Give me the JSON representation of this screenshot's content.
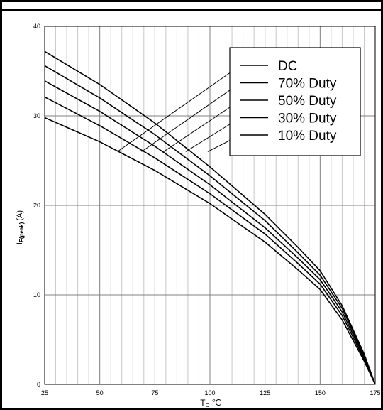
{
  "chart_data": {
    "type": "line",
    "title": "",
    "xlabel_main": "T",
    "xlabel_sub": "C",
    "xlabel_unit": "℃",
    "ylabel_main": "I",
    "ylabel_sub": "F(peak)",
    "ylabel_unit": "(A)",
    "xlim": [
      25,
      175
    ],
    "ylim": [
      0,
      40
    ],
    "xticks": [
      25,
      50,
      75,
      100,
      125,
      150,
      175
    ],
    "yticks": [
      0,
      10,
      20,
      30,
      40
    ],
    "grid": true,
    "legend_position": "top-right",
    "x": [
      25,
      50,
      75,
      100,
      125,
      140,
      150,
      160,
      170,
      175
    ],
    "series": [
      {
        "name": "DC",
        "values": [
          37.2,
          33.5,
          29.2,
          24.3,
          19.0,
          15.3,
          12.7,
          8.8,
          3.4,
          0
        ]
      },
      {
        "name": "70% Duty",
        "values": [
          35.6,
          32.0,
          27.9,
          23.3,
          18.3,
          14.7,
          12.2,
          8.5,
          3.2,
          0
        ]
      },
      {
        "name": "50% Duty",
        "values": [
          33.9,
          30.5,
          26.6,
          22.3,
          17.5,
          14.1,
          11.7,
          8.1,
          3.0,
          0
        ]
      },
      {
        "name": "30% Duty",
        "values": [
          32.1,
          28.9,
          25.3,
          21.3,
          16.8,
          13.5,
          11.2,
          7.7,
          2.8,
          0
        ]
      },
      {
        "name": "10% Duty",
        "values": [
          29.8,
          27.1,
          23.9,
          20.2,
          15.9,
          12.8,
          10.6,
          7.2,
          2.6,
          0
        ]
      }
    ],
    "legend_leaders": [
      {
        "series": "DC",
        "curve_point": [
          58,
          26.0
        ]
      },
      {
        "series": "70% Duty",
        "curve_point": [
          69,
          26.0
        ]
      },
      {
        "series": "50% Duty",
        "curve_point": [
          79,
          26.0
        ]
      },
      {
        "series": "30% Duty",
        "curve_point": [
          89,
          26.0
        ]
      },
      {
        "series": "10% Duty",
        "curve_point": [
          99,
          26.0
        ]
      }
    ]
  }
}
